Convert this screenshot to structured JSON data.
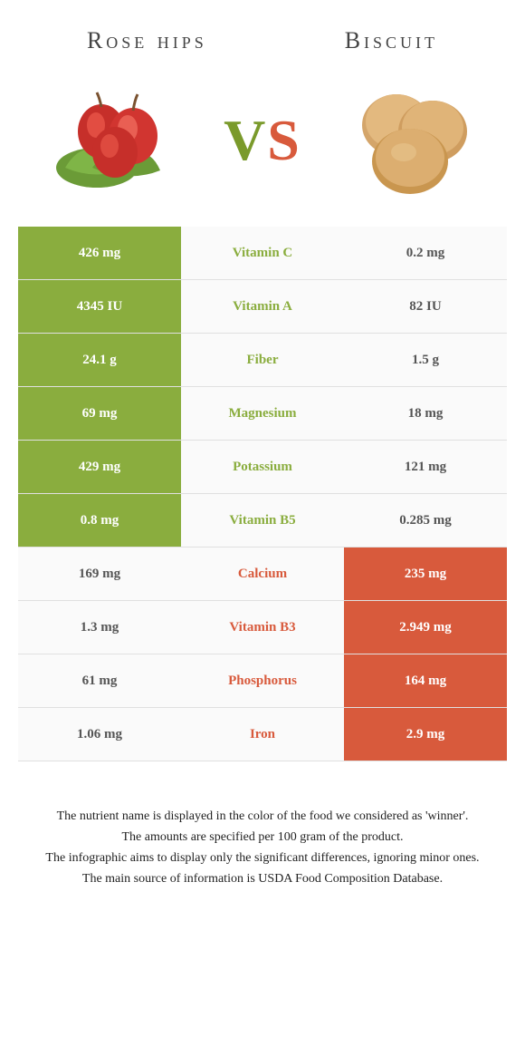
{
  "header": {
    "left_title": "Rose hips",
    "right_title": "Biscuit"
  },
  "vs": {
    "v": "V",
    "s": "S"
  },
  "colors": {
    "left_winner": "#8aad3e",
    "right_winner": "#d85a3c",
    "mid_bg": "#fafafa",
    "border": "#e0e0e0"
  },
  "rows": [
    {
      "left": "426 mg",
      "label": "Vitamin C",
      "right": "0.2 mg",
      "winner": "left"
    },
    {
      "left": "4345 IU",
      "label": "Vitamin A",
      "right": "82 IU",
      "winner": "left"
    },
    {
      "left": "24.1 g",
      "label": "Fiber",
      "right": "1.5 g",
      "winner": "left"
    },
    {
      "left": "69 mg",
      "label": "Magnesium",
      "right": "18 mg",
      "winner": "left"
    },
    {
      "left": "429 mg",
      "label": "Potassium",
      "right": "121 mg",
      "winner": "left"
    },
    {
      "left": "0.8 mg",
      "label": "Vitamin B5",
      "right": "0.285 mg",
      "winner": "left"
    },
    {
      "left": "169 mg",
      "label": "Calcium",
      "right": "235 mg",
      "winner": "right"
    },
    {
      "left": "1.3 mg",
      "label": "Vitamin B3",
      "right": "2.949 mg",
      "winner": "right"
    },
    {
      "left": "61 mg",
      "label": "Phosphorus",
      "right": "164 mg",
      "winner": "right"
    },
    {
      "left": "1.06 mg",
      "label": "Iron",
      "right": "2.9 mg",
      "winner": "right"
    }
  ],
  "footnotes": [
    "The nutrient name is displayed in the color of the food we considered as 'winner'.",
    "The amounts are specified per 100 gram of the product.",
    "The infographic aims to display only the significant differences, ignoring minor ones.",
    "The main source of information is USDA Food Composition Database."
  ]
}
